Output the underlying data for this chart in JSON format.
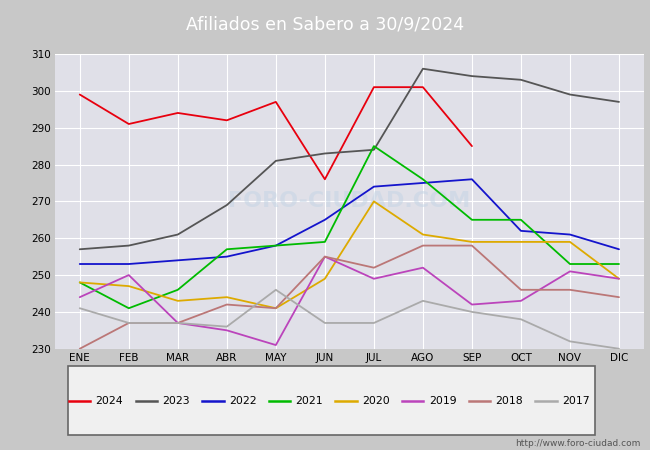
{
  "title": "Afiliados en Sabero a 30/9/2024",
  "ylim": [
    230,
    310
  ],
  "yticks": [
    230,
    240,
    250,
    260,
    270,
    280,
    290,
    300,
    310
  ],
  "months": [
    "ENE",
    "FEB",
    "MAR",
    "ABR",
    "MAY",
    "JUN",
    "JUL",
    "AGO",
    "SEP",
    "OCT",
    "NOV",
    "DIC"
  ],
  "watermark": "http://www.foro-ciudad.com",
  "series": {
    "2024": {
      "color": "#e8000e",
      "values": [
        299,
        291,
        294,
        292,
        297,
        276,
        301,
        301,
        285,
        null,
        null,
        null
      ]
    },
    "2023": {
      "color": "#555555",
      "values": [
        257,
        258,
        261,
        269,
        281,
        283,
        284,
        306,
        304,
        303,
        299,
        297
      ]
    },
    "2022": {
      "color": "#1414cc",
      "values": [
        253,
        253,
        254,
        255,
        258,
        265,
        274,
        275,
        276,
        262,
        261,
        257
      ]
    },
    "2021": {
      "color": "#00bb00",
      "values": [
        248,
        241,
        246,
        257,
        258,
        259,
        285,
        276,
        265,
        265,
        253,
        253
      ]
    },
    "2020": {
      "color": "#ddaa00",
      "values": [
        248,
        247,
        243,
        244,
        241,
        249,
        270,
        261,
        259,
        259,
        259,
        249
      ]
    },
    "2019": {
      "color": "#bb44bb",
      "values": [
        244,
        250,
        237,
        235,
        231,
        255,
        249,
        252,
        242,
        243,
        251,
        249
      ]
    },
    "2018": {
      "color": "#bb7777",
      "values": [
        230,
        237,
        237,
        242,
        241,
        255,
        252,
        258,
        258,
        246,
        246,
        244
      ]
    },
    "2017": {
      "color": "#aaaaaa",
      "values": [
        241,
        237,
        237,
        236,
        246,
        237,
        237,
        243,
        240,
        238,
        232,
        230
      ]
    }
  },
  "legend_order": [
    "2024",
    "2023",
    "2022",
    "2021",
    "2020",
    "2019",
    "2018",
    "2017"
  ],
  "title_bg_color": "#4472c4",
  "title_text_color": "#ffffff",
  "plot_bg_color": "#e0e0e8",
  "grid_color": "#ffffff",
  "fig_bg_color": "#c8c8c8",
  "legend_bg_color": "#f0f0f0",
  "legend_border_color": "#666666"
}
